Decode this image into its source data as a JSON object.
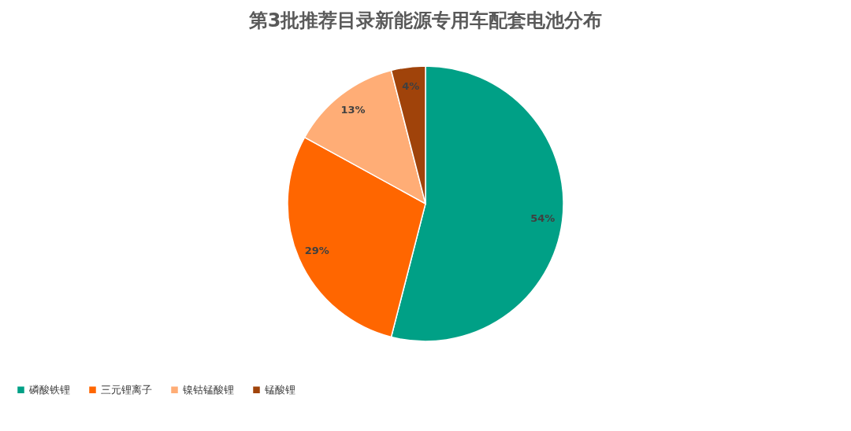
{
  "chart_data": {
    "type": "pie",
    "title": "第3批推荐目录新能源专用车配套电池分布",
    "categories": [
      "磷酸铁锂",
      "三元锂离子",
      "镍钴锰酸锂",
      "锰酸锂"
    ],
    "values": [
      54,
      29,
      13,
      4
    ],
    "colors": [
      "#00a086",
      "#ff6600",
      "#ffad76",
      "#a0430a"
    ],
    "value_labels": [
      "54%",
      "29%",
      "13%",
      "4%"
    ],
    "legend": "bottom"
  }
}
